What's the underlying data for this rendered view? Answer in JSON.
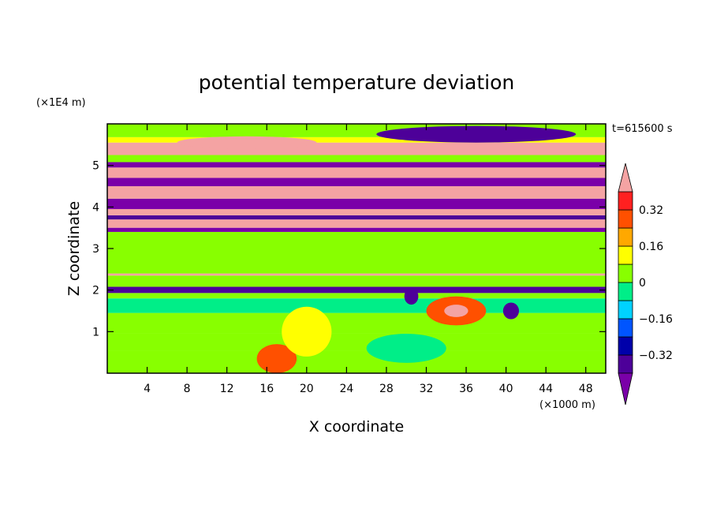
{
  "chart_data": {
    "type": "heatmap",
    "title": "potential temperature deviation",
    "xlabel": "X coordinate",
    "ylabel": "Z coordinate",
    "x_unit": "(×1000 m)",
    "y_unit": "(×1E4 m)",
    "time_label": "t=615600 s",
    "xlim": [
      0,
      50
    ],
    "ylim": [
      0,
      6
    ],
    "x_ticks": [
      4,
      8,
      12,
      16,
      20,
      24,
      28,
      32,
      36,
      40,
      44,
      48
    ],
    "y_ticks": [
      1,
      2,
      3,
      4,
      5
    ],
    "colorbar": {
      "levels": [
        -0.4,
        -0.32,
        -0.24,
        -0.16,
        -0.08,
        0,
        0.08,
        0.16,
        0.24,
        0.32,
        0.4
      ],
      "tick_labels": [
        "0.32",
        "0.16",
        "0",
        "−0.16",
        "−0.32"
      ],
      "tick_values": [
        0.32,
        0.16,
        0,
        -0.16,
        -0.32
      ],
      "colors": [
        "#7a00a8",
        "#4d0099",
        "#0000aa",
        "#0055ff",
        "#00d2ff",
        "#00ee88",
        "#88ff00",
        "#ffff00",
        "#ffa800",
        "#ff5000",
        "#ff2020",
        "#f4a3a3"
      ]
    },
    "bands": [
      {
        "z0": 0.0,
        "z1": 0.55,
        "value": 0.05
      },
      {
        "z0": 0.55,
        "z1": 0.95,
        "value": 0.02
      },
      {
        "z0": 0.95,
        "z1": 1.45,
        "value": 0.05
      },
      {
        "z0": 1.45,
        "z1": 1.8,
        "value": -0.07
      },
      {
        "z0": 1.8,
        "z1": 1.93,
        "value": 0.05
      },
      {
        "z0": 1.93,
        "z1": 2.08,
        "value": -0.38
      },
      {
        "z0": 2.08,
        "z1": 2.35,
        "value": 0.05
      },
      {
        "z0": 2.35,
        "z1": 2.4,
        "value": 0.4
      },
      {
        "z0": 2.4,
        "z1": 3.4,
        "value": 0.05
      },
      {
        "z0": 3.4,
        "z1": 3.5,
        "value": -0.42
      },
      {
        "z0": 3.5,
        "z1": 3.7,
        "value": 0.45
      },
      {
        "z0": 3.7,
        "z1": 3.8,
        "value": -0.4
      },
      {
        "z0": 3.8,
        "z1": 3.95,
        "value": 0.45
      },
      {
        "z0": 3.95,
        "z1": 4.2,
        "value": -0.42
      },
      {
        "z0": 4.2,
        "z1": 4.5,
        "value": 0.45
      },
      {
        "z0": 4.5,
        "z1": 4.7,
        "value": -0.42
      },
      {
        "z0": 4.7,
        "z1": 4.95,
        "value": 0.45
      },
      {
        "z0": 4.95,
        "z1": 5.08,
        "value": -0.42
      },
      {
        "z0": 5.08,
        "z1": 5.25,
        "value": 0.02
      },
      {
        "z0": 5.25,
        "z1": 5.55,
        "value": 0.45
      },
      {
        "z0": 5.55,
        "z1": 5.68,
        "value": 0.15
      },
      {
        "z0": 5.68,
        "z1": 6.0,
        "value": 0.05
      }
    ],
    "blobs": [
      {
        "x": 35.0,
        "z": 1.5,
        "rx": 3.0,
        "rz": 0.35,
        "value": 0.3
      },
      {
        "x": 35.0,
        "z": 1.5,
        "rx": 1.2,
        "rz": 0.15,
        "value": 0.45
      },
      {
        "x": 30.5,
        "z": 1.85,
        "rx": 0.7,
        "rz": 0.2,
        "value": -0.4
      },
      {
        "x": 40.5,
        "z": 1.5,
        "rx": 0.8,
        "rz": 0.2,
        "value": -0.4
      },
      {
        "x": 30.0,
        "z": 0.6,
        "rx": 4.0,
        "rz": 0.35,
        "value": -0.08
      },
      {
        "x": 17.0,
        "z": 0.35,
        "rx": 2.0,
        "rz": 0.35,
        "value": 0.24
      },
      {
        "x": 20.0,
        "z": 1.0,
        "rx": 2.5,
        "rz": 0.6,
        "value": 0.12
      },
      {
        "x": 37.0,
        "z": 5.75,
        "rx": 10.0,
        "rz": 0.2,
        "value": -0.4
      },
      {
        "x": 14.0,
        "z": 5.55,
        "rx": 7.0,
        "rz": 0.15,
        "value": 0.45
      }
    ]
  }
}
